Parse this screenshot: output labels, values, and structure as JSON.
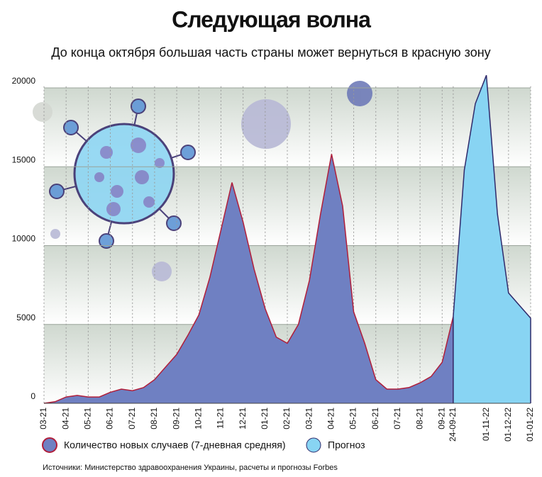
{
  "chart_data": {
    "type": "area",
    "title": "Следующая волна",
    "subtitle": "До конца октября большая часть страны может вернуться в красную зону",
    "source": "Источники: Министерство здравоохранения Украины, расчеты и прогнозы Forbes",
    "categories": [
      "03-21",
      null,
      "04-21",
      null,
      "05-21",
      null,
      "06-21",
      null,
      "07-21",
      null,
      "08-21",
      null,
      "09-21",
      null,
      "10-21",
      null,
      "11-21",
      null,
      "12-21",
      null,
      "01-21",
      null,
      "02-21",
      null,
      "03-21",
      null,
      "04-21",
      null,
      "05-21",
      null,
      "06-21",
      null,
      "07-21",
      null,
      "08-21",
      null,
      "09-21",
      "24-09-21",
      null,
      null,
      "01-11-22",
      null,
      "01-12-22",
      null,
      "01-01-22"
    ],
    "series": [
      {
        "name": "Количество новых случаев (7-дневная средняя)",
        "color": "#6f80c2",
        "stroke": "#b01e3a",
        "values": [
          0,
          100,
          400,
          500,
          400,
          400,
          700,
          900,
          800,
          1000,
          1500,
          2300,
          3100,
          4300,
          5600,
          8000,
          11000,
          14000,
          11500,
          8500,
          6000,
          4200,
          3800,
          5000,
          7800,
          12000,
          15800,
          12500,
          5800,
          3800,
          1500,
          900,
          900,
          1000,
          1300,
          1700,
          2600,
          5500,
          null,
          null,
          null,
          null,
          null,
          null,
          null
        ]
      },
      {
        "name": "Прогноз",
        "color": "#88d4f3",
        "stroke": "#2f2a6b",
        "values": [
          null,
          null,
          null,
          null,
          null,
          null,
          null,
          null,
          null,
          null,
          null,
          null,
          null,
          null,
          null,
          null,
          null,
          null,
          null,
          null,
          null,
          null,
          null,
          null,
          null,
          null,
          null,
          null,
          null,
          null,
          null,
          null,
          null,
          null,
          null,
          null,
          null,
          5500,
          14800,
          19000,
          20800,
          12000,
          7000,
          6200,
          5400
        ]
      }
    ],
    "ylim": [
      0,
      21000
    ],
    "yticks": [
      0,
      5000,
      10000,
      15000,
      20000
    ],
    "grid": true
  }
}
